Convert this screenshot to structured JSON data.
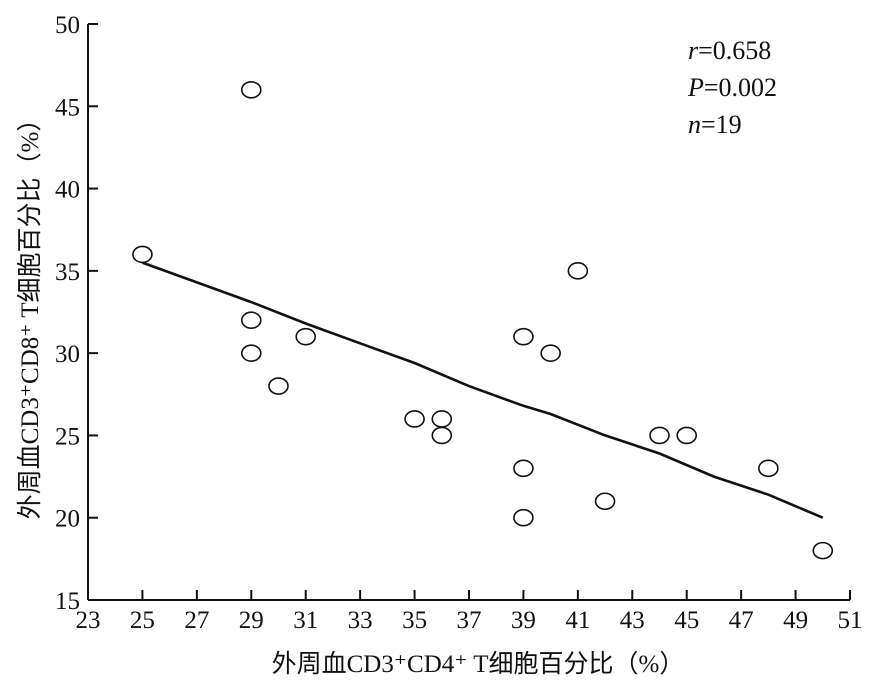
{
  "chart_data": {
    "type": "scatter",
    "xlabel": "外周血CD3⁺CD4⁺ T细胞百分比（%）",
    "ylabel": "外周血CD3⁺CD8⁺ T细胞百分比（%）",
    "xlim": [
      23,
      51
    ],
    "ylim": [
      15,
      50
    ],
    "x_ticks": [
      23,
      25,
      27,
      29,
      31,
      33,
      35,
      37,
      39,
      41,
      43,
      45,
      47,
      49,
      51
    ],
    "y_ticks": [
      15,
      20,
      25,
      30,
      35,
      40,
      45,
      50
    ],
    "points": [
      {
        "x": 25,
        "y": 36
      },
      {
        "x": 29,
        "y": 46
      },
      {
        "x": 29,
        "y": 32
      },
      {
        "x": 29,
        "y": 30
      },
      {
        "x": 30,
        "y": 28
      },
      {
        "x": 31,
        "y": 31
      },
      {
        "x": 35,
        "y": 26
      },
      {
        "x": 36,
        "y": 26
      },
      {
        "x": 36,
        "y": 25
      },
      {
        "x": 39,
        "y": 31
      },
      {
        "x": 39,
        "y": 23
      },
      {
        "x": 39,
        "y": 20
      },
      {
        "x": 40,
        "y": 30
      },
      {
        "x": 41,
        "y": 35
      },
      {
        "x": 42,
        "y": 21
      },
      {
        "x": 44,
        "y": 25
      },
      {
        "x": 45,
        "y": 25
      },
      {
        "x": 48,
        "y": 23
      },
      {
        "x": 50,
        "y": 18
      }
    ],
    "trend_line": [
      {
        "x": 25,
        "y": 35.5
      },
      {
        "x": 27,
        "y": 34.3
      },
      {
        "x": 29,
        "y": 33.1
      },
      {
        "x": 31,
        "y": 31.8
      },
      {
        "x": 33,
        "y": 30.6
      },
      {
        "x": 35,
        "y": 29.4
      },
      {
        "x": 37,
        "y": 28.0
      },
      {
        "x": 39,
        "y": 26.8
      },
      {
        "x": 40,
        "y": 26.3
      },
      {
        "x": 42,
        "y": 25.0
      },
      {
        "x": 44,
        "y": 23.9
      },
      {
        "x": 46,
        "y": 22.5
      },
      {
        "x": 48,
        "y": 21.4
      },
      {
        "x": 50,
        "y": 20.0
      }
    ],
    "stats": {
      "r_symbol": "r",
      "r_value": "=0.658",
      "p_symbol": "P",
      "p_value": "=0.002",
      "n_symbol": "n",
      "n_value": "=19"
    }
  }
}
